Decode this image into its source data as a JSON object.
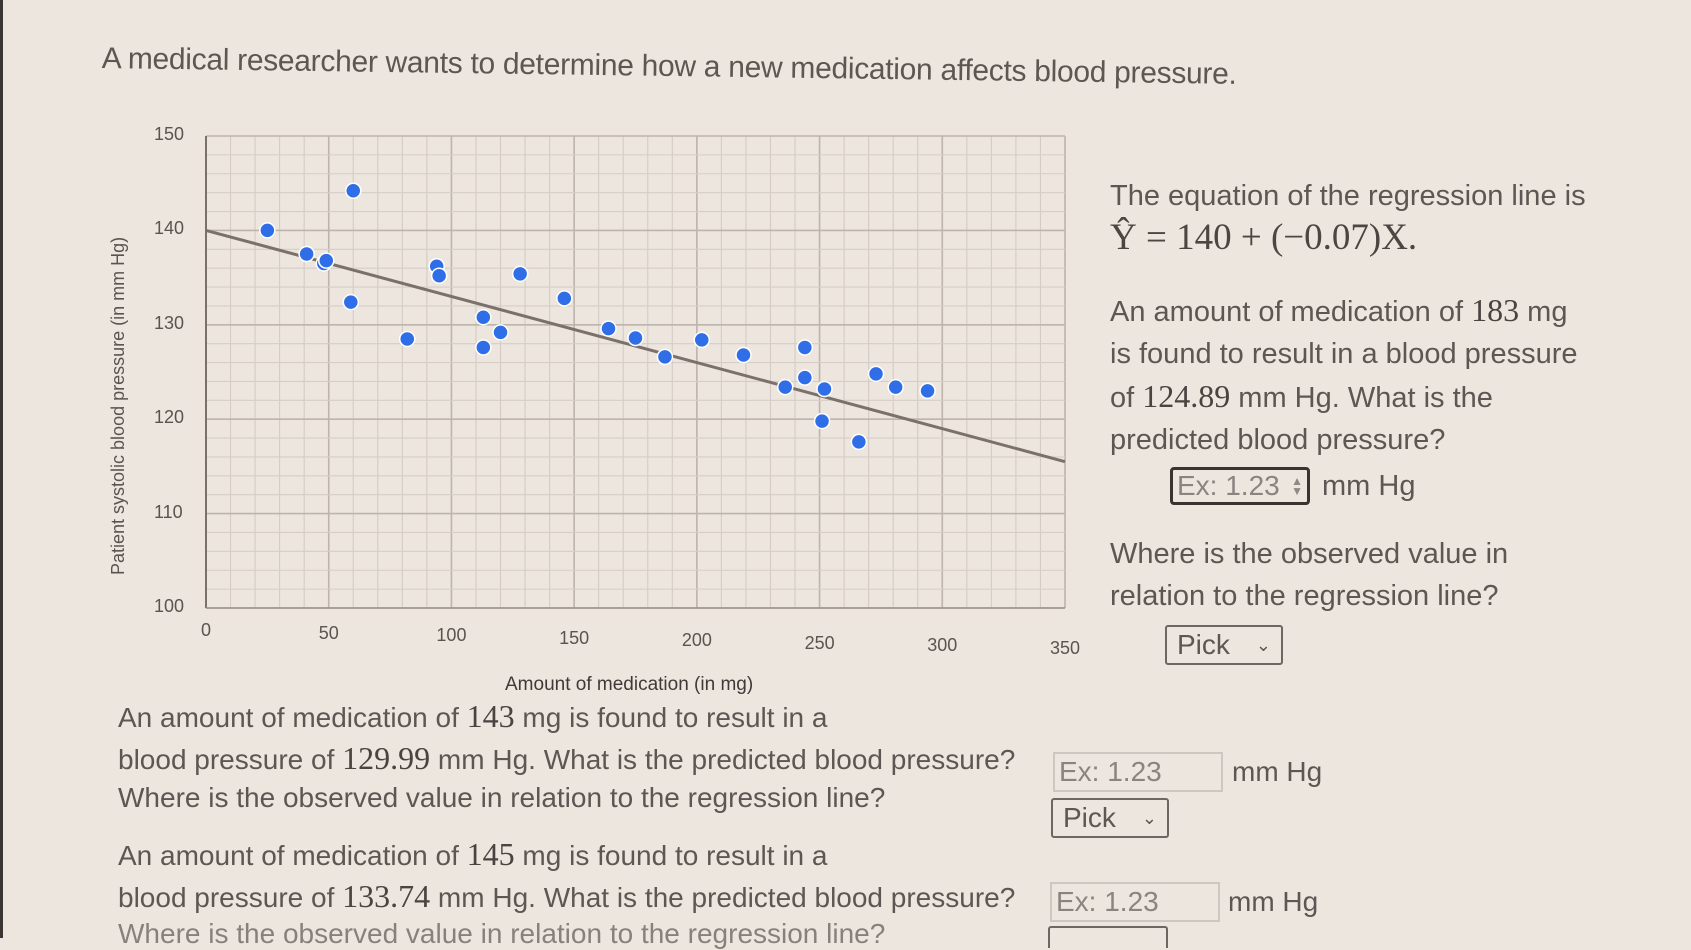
{
  "intro_text": "A medical researcher wants to determine how a new medication affects blood pressure.",
  "chart_data": {
    "type": "scatter",
    "title": "",
    "xlabel": "Amount of medication (in mg)",
    "ylabel": "Patient systolic blood pressure (in mm Hg)",
    "xlim": [
      0,
      350
    ],
    "ylim": [
      100,
      150
    ],
    "x_ticks": [
      0,
      50,
      100,
      150,
      200,
      250,
      300,
      350
    ],
    "y_ticks": [
      100,
      110,
      120,
      130,
      140,
      150
    ],
    "x_minor_step": 10,
    "y_minor_step": 2,
    "grid": true,
    "legend": null,
    "point_color": "#2f6ee6",
    "line_color": "#7a716b",
    "regression_line": {
      "intercept": 140,
      "slope": -0.07,
      "x_range": [
        0,
        350
      ]
    },
    "points": [
      {
        "x": 25,
        "y": 140
      },
      {
        "x": 41,
        "y": 137.5
      },
      {
        "x": 48,
        "y": 136.5
      },
      {
        "x": 49,
        "y": 136.8
      },
      {
        "x": 60,
        "y": 144.2
      },
      {
        "x": 59,
        "y": 132.4
      },
      {
        "x": 82,
        "y": 128.5
      },
      {
        "x": 94,
        "y": 136.2
      },
      {
        "x": 95,
        "y": 135.2
      },
      {
        "x": 113,
        "y": 130.8
      },
      {
        "x": 113,
        "y": 127.6
      },
      {
        "x": 120,
        "y": 129.2
      },
      {
        "x": 128,
        "y": 135.4
      },
      {
        "x": 146,
        "y": 132.8
      },
      {
        "x": 164,
        "y": 129.6
      },
      {
        "x": 175,
        "y": 128.6
      },
      {
        "x": 187,
        "y": 126.6
      },
      {
        "x": 202,
        "y": 128.4
      },
      {
        "x": 219,
        "y": 126.8
      },
      {
        "x": 236,
        "y": 123.4
      },
      {
        "x": 244,
        "y": 124.4
      },
      {
        "x": 244,
        "y": 127.6
      },
      {
        "x": 252,
        "y": 123.2
      },
      {
        "x": 251,
        "y": 119.8
      },
      {
        "x": 266,
        "y": 117.6
      },
      {
        "x": 273,
        "y": 124.8
      },
      {
        "x": 281,
        "y": 123.4
      },
      {
        "x": 294,
        "y": 123.0
      }
    ]
  },
  "panel": {
    "equation_intro": "The equation of the regression line is",
    "equation": "Ŷ = 140 + (−0.07)X.",
    "q1": {
      "line1_pre": "An amount of medication of ",
      "dose": "183",
      "line1_post": " mg",
      "line2": "is found to result in a blood pressure",
      "line3_pre": "of ",
      "bp": "124.89",
      "line3_post": " mm Hg. What is the",
      "line4": "predicted blood pressure?",
      "input_placeholder": "Ex: 1.23",
      "unit": "mm Hg",
      "where_line1": "Where is the observed value in",
      "where_line2": "relation to the regression line?",
      "select_value": "Pick"
    }
  },
  "q2": {
    "line1_pre": "An amount of medication of ",
    "dose": "143",
    "line1_post": " mg is found to result in a",
    "line2_pre": "blood pressure of ",
    "bp": "129.99",
    "line2_post": " mm Hg. What is the predicted blood pressure?",
    "input_placeholder": "Ex: 1.23",
    "unit": "mm Hg",
    "where": "Where is the observed value in relation to the regression line?",
    "select_value": "Pick"
  },
  "q3": {
    "line1_pre": "An amount of medication of ",
    "dose": "145",
    "line1_post": " mg is found to result in a",
    "line2_pre": "blood pressure of ",
    "bp": "133.74",
    "line2_post": " mm Hg. What is the predicted blood pressure?",
    "input_placeholder": "Ex: 1.23",
    "unit": "mm Hg",
    "where": "Where is the observed value in relation to the regression line?"
  }
}
